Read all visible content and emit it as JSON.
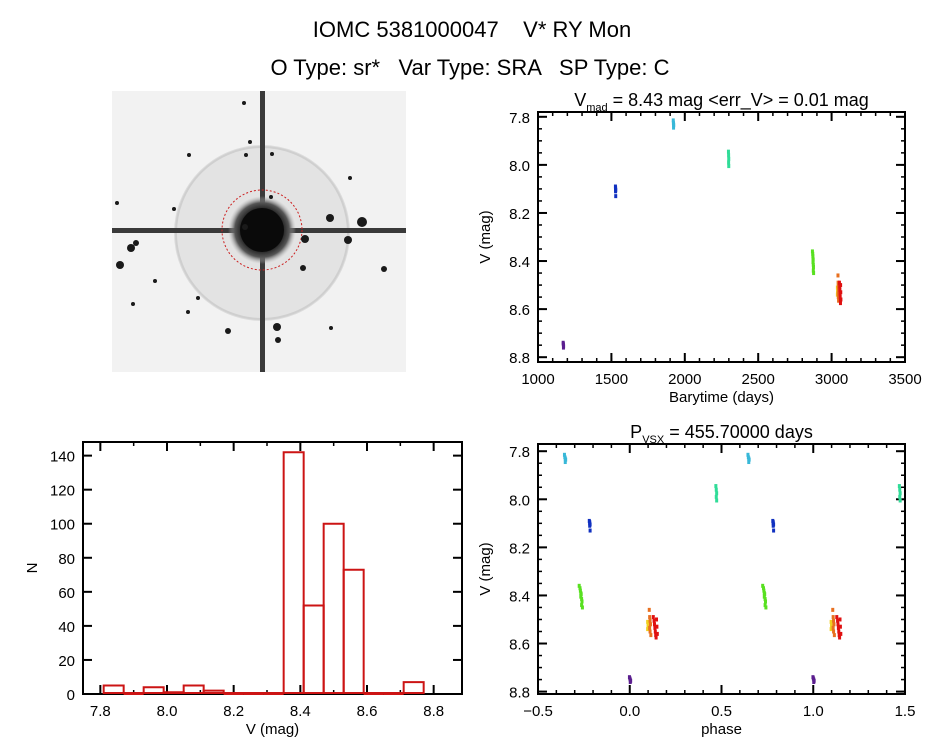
{
  "header": {
    "line1": "IOMC 5381000047    V* RY Mon",
    "line2": "O Type: sr*   Var Type: SRA   SP Type: C"
  },
  "colors": {
    "axis": "#000000",
    "hist": "#cc1414",
    "finder_circle": "#cc2020"
  },
  "finder": {
    "icon": "star-field-image"
  },
  "chart_data": [
    {
      "id": "lightcurve",
      "type": "scatter",
      "title_main": "V",
      "title_sub": "mad",
      "title_rest": " = 8.43 mag <err_V> = 0.01 mag",
      "xlabel": "Barytime (days)",
      "ylabel": "V (mag)",
      "xlim": [
        1000,
        3500
      ],
      "ylim": [
        8.82,
        7.78
      ],
      "xticks": [
        1000,
        1500,
        2000,
        2500,
        3000,
        3500
      ],
      "xtick_labels": [
        "1000",
        "1500",
        "2000",
        "2500",
        "3000",
        "3500"
      ],
      "yticks": [
        7.8,
        8.0,
        8.2,
        8.4,
        8.6,
        8.8
      ],
      "ytick_labels": [
        "7.8",
        "8.0",
        "8.2",
        "8.4",
        "8.6",
        "8.8"
      ],
      "series": [
        {
          "name": "season1",
          "color": "#5b1f8f",
          "points": [
            [
              1168,
              8.74
            ],
            [
              1169,
              8.745
            ],
            [
              1170,
              8.75
            ],
            [
              1171,
              8.755
            ],
            [
              1170,
              8.76
            ]
          ]
        },
        {
          "name": "season2",
          "color": "#1030c0",
          "points": [
            [
              1524,
              8.09
            ],
            [
              1525,
              8.095
            ],
            [
              1525,
              8.1
            ],
            [
              1526,
              8.105
            ],
            [
              1525,
              8.11
            ],
            [
              1526,
              8.13
            ]
          ]
        },
        {
          "name": "season3",
          "color": "#38b8d8",
          "points": [
            [
              1918,
              7.815
            ],
            [
              1919,
              7.825
            ],
            [
              1920,
              7.83
            ],
            [
              1921,
              7.835
            ],
            [
              1920,
              7.845
            ]
          ]
        },
        {
          "name": "season4",
          "color": "#30dc98",
          "points": [
            [
              2294,
              7.945
            ],
            [
              2295,
              7.96
            ],
            [
              2296,
              7.975
            ],
            [
              2295,
              7.99
            ],
            [
              2296,
              8.005
            ]
          ]
        },
        {
          "name": "season5",
          "color": "#58e020",
          "points": [
            [
              2866,
              8.36
            ],
            [
              2868,
              8.37
            ],
            [
              2869,
              8.38
            ],
            [
              2870,
              8.39
            ],
            [
              2871,
              8.395
            ],
            [
              2870,
              8.405
            ],
            [
              2872,
              8.415
            ],
            [
              2873,
              8.425
            ],
            [
              2872,
              8.44
            ],
            [
              2874,
              8.45
            ]
          ]
        },
        {
          "name": "season6a",
          "color": "#f0d020",
          "points": [
            [
              3036,
              8.51
            ],
            [
              3037,
              8.525
            ],
            [
              3036,
              8.54
            ]
          ]
        },
        {
          "name": "season6b",
          "color": "#e87020",
          "points": [
            [
              3040,
              8.46
            ],
            [
              3041,
              8.49
            ],
            [
              3042,
              8.505
            ],
            [
              3043,
              8.52
            ],
            [
              3041,
              8.535
            ],
            [
              3042,
              8.55
            ],
            [
              3044,
              8.565
            ]
          ]
        },
        {
          "name": "season6c",
          "color": "#e01010",
          "points": [
            [
              3050,
              8.49
            ],
            [
              3052,
              8.505
            ],
            [
              3053,
              8.52
            ],
            [
              3054,
              8.535
            ],
            [
              3055,
              8.55
            ],
            [
              3056,
              8.565
            ],
            [
              3057,
              8.575
            ],
            [
              3058,
              8.5
            ],
            [
              3059,
              8.53
            ],
            [
              3060,
              8.56
            ]
          ]
        }
      ]
    },
    {
      "id": "histogram",
      "type": "bar",
      "xlabel": "V (mag)",
      "ylabel": "N",
      "xlim": [
        7.748,
        8.885
      ],
      "ylim": [
        0,
        148
      ],
      "bin_width": 0.06,
      "bin_starts": [
        7.81,
        7.87,
        7.93,
        7.99,
        8.05,
        8.11,
        8.17,
        8.23,
        8.29,
        8.35,
        8.41,
        8.47,
        8.53,
        8.59,
        8.65,
        8.71
      ],
      "counts": [
        5,
        0,
        4,
        1,
        5,
        2,
        0,
        0,
        0,
        142,
        52,
        100,
        73,
        0,
        0,
        7
      ],
      "xticks": [
        7.8,
        8.0,
        8.2,
        8.4,
        8.6,
        8.8
      ],
      "xtick_labels": [
        "7.8",
        "8.0",
        "8.2",
        "8.4",
        "8.6",
        "8.8"
      ],
      "yticks": [
        0,
        20,
        40,
        60,
        80,
        100,
        120,
        140
      ],
      "ytick_labels": [
        "0",
        "20",
        "40",
        "60",
        "80",
        "100",
        "120",
        "140"
      ]
    },
    {
      "id": "phased",
      "type": "scatter",
      "title_main": "P",
      "title_sub": "VSX",
      "title_rest": " = 455.70000 days",
      "period_days": 455.7,
      "xlabel": "phase",
      "ylabel": "V (mag)",
      "xlim": [
        -0.5,
        1.5
      ],
      "ylim": [
        8.81,
        7.77
      ],
      "xticks": [
        -0.5,
        0.0,
        0.5,
        1.0,
        1.5
      ],
      "xtick_labels": [
        "−0.5",
        "0.0",
        "0.5",
        "1.0",
        "1.5"
      ],
      "yticks": [
        7.8,
        8.0,
        8.2,
        8.4,
        8.6,
        8.8
      ],
      "ytick_labels": [
        "7.8",
        "8.0",
        "8.2",
        "8.4",
        "8.6",
        "8.8"
      ],
      "series_from": "lightcurve"
    }
  ]
}
